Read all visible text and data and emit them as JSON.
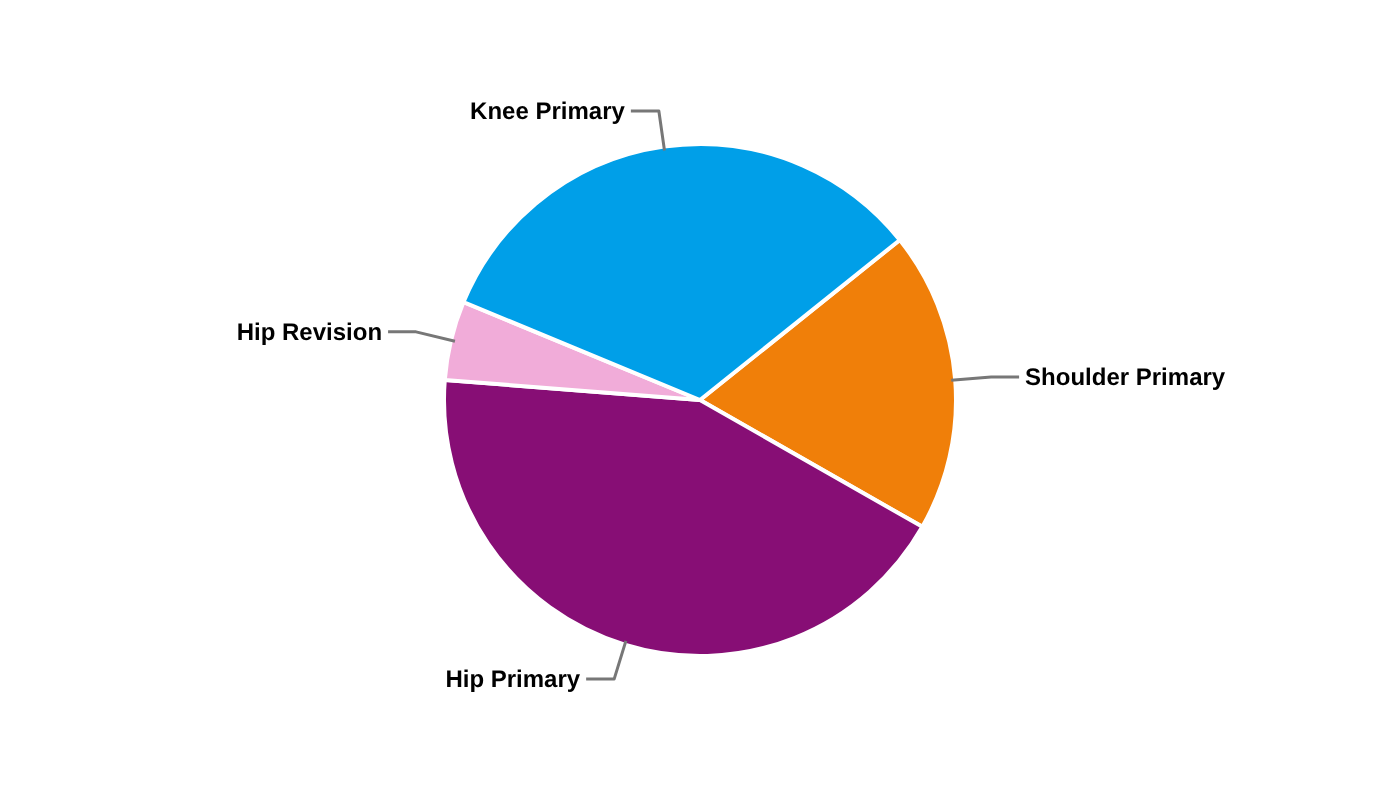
{
  "chart_data": {
    "type": "pie",
    "categories": [
      "Shoulder Primary",
      "Hip Primary",
      "Hip Revision",
      "Knee Primary"
    ],
    "values": [
      19,
      43,
      5,
      33
    ],
    "colors": [
      "#f07f09",
      "#870e75",
      "#f1acd9",
      "#009fe8"
    ]
  }
}
